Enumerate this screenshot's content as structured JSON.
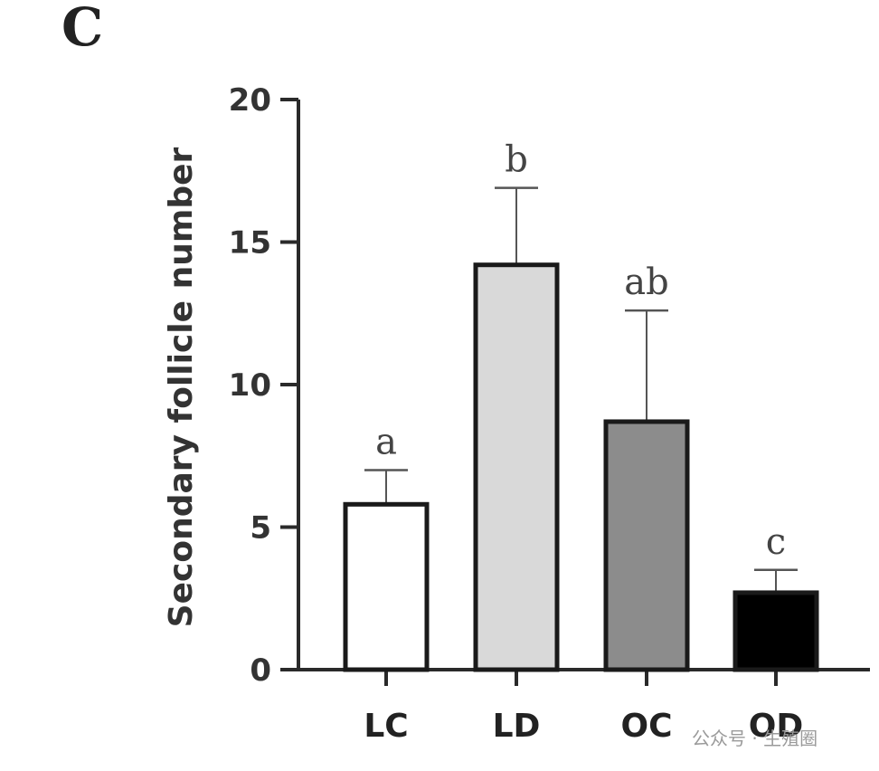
{
  "panel_label": "C",
  "watermark": "公众号 · 生殖圈",
  "chart_data": {
    "type": "bar",
    "title": "",
    "xlabel": "",
    "ylabel": "Secondary follicle number",
    "ylim": [
      0,
      20
    ],
    "yticks": [
      0,
      5,
      10,
      15,
      20
    ],
    "categories": [
      "LC",
      "LD",
      "OC",
      "OD"
    ],
    "values": [
      5.8,
      14.2,
      8.7,
      2.7
    ],
    "errors": [
      1.2,
      2.7,
      3.9,
      0.8
    ],
    "significance": [
      "a",
      "b",
      "ab",
      "c"
    ],
    "bar_colors": [
      "#ffffff",
      "#d9d9d9",
      "#8c8c8c",
      "#000000"
    ],
    "grid": false
  }
}
